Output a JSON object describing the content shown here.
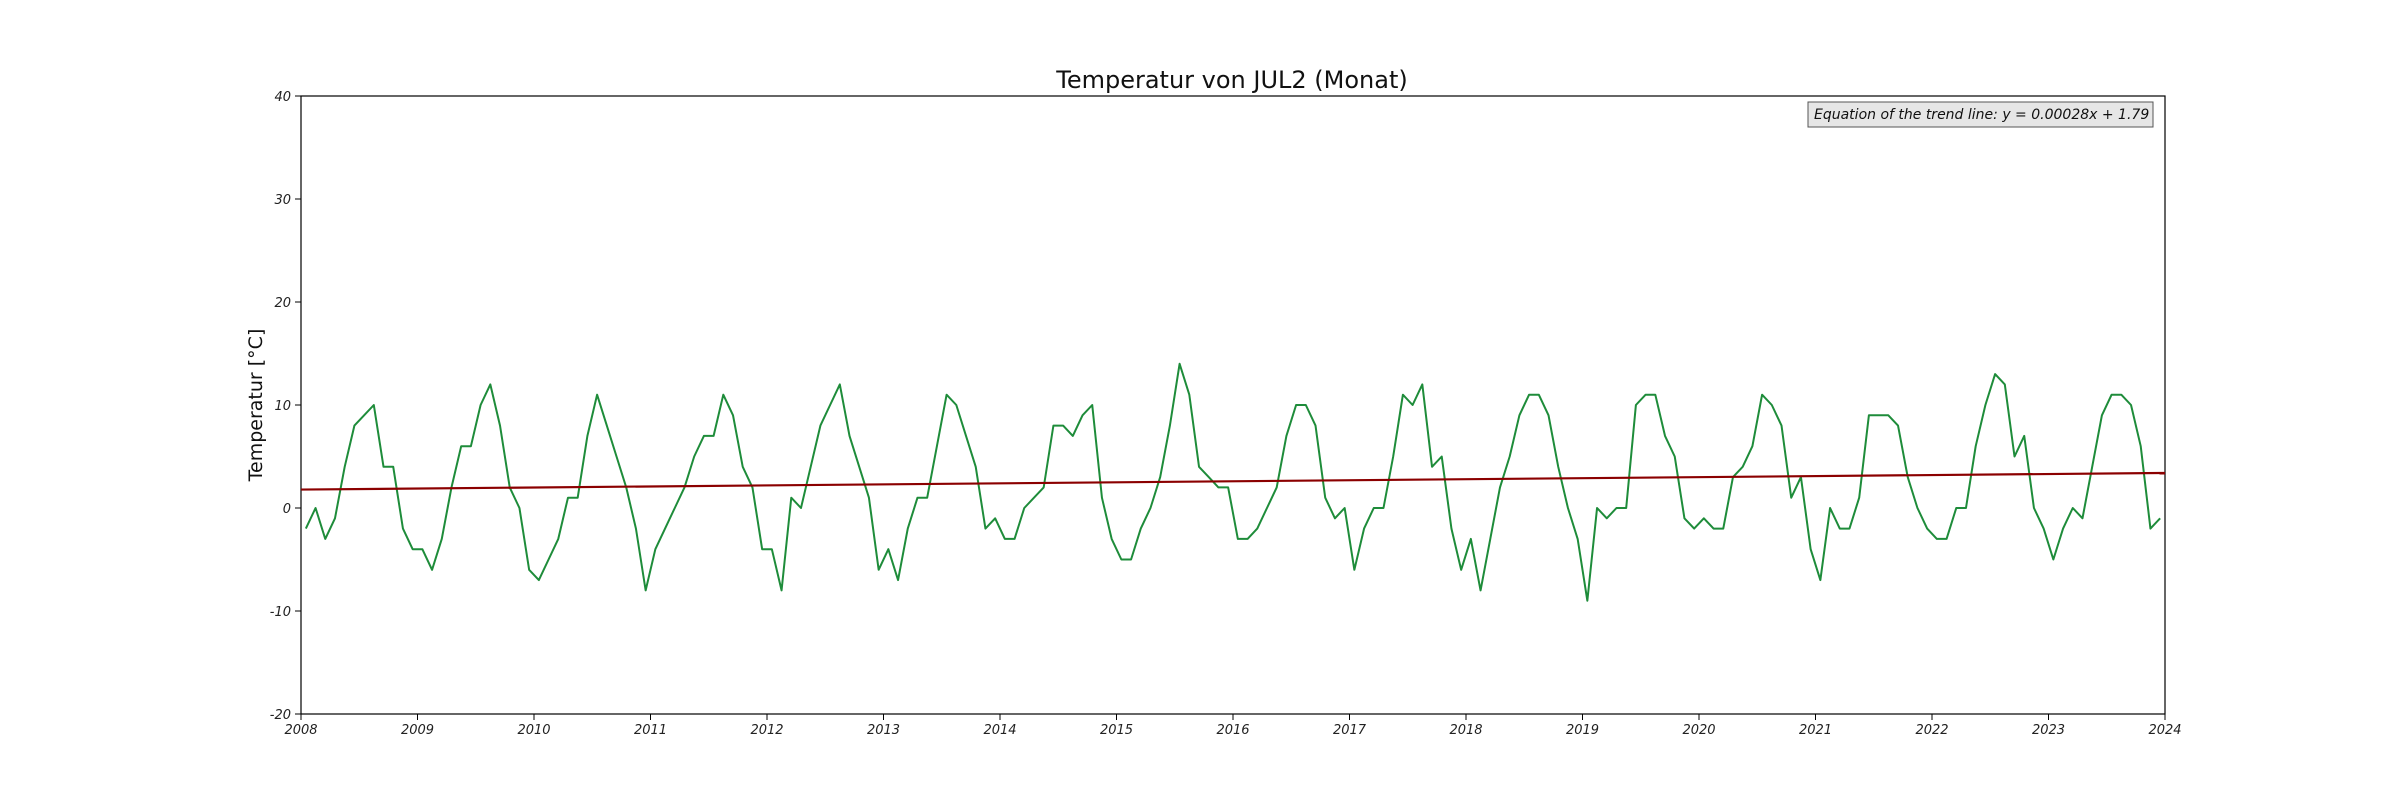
{
  "chart_data": {
    "type": "line",
    "title": "Temperatur von JUL2 (Monat)",
    "xlabel": "",
    "ylabel": "Temperatur [°C]",
    "xlim": [
      2008,
      2024
    ],
    "ylim": [
      -20,
      40
    ],
    "yticks": [
      -20,
      -10,
      0,
      10,
      20,
      30,
      40
    ],
    "xticks": [
      2008,
      2009,
      2010,
      2011,
      2012,
      2013,
      2014,
      2015,
      2016,
      2017,
      2018,
      2019,
      2020,
      2021,
      2022,
      2023,
      2024
    ],
    "grid": false,
    "annotation": "Equation of the trend line: y = 0.00028x + 1.79",
    "series": [
      {
        "color": "#1e8c3a",
        "x_start": "2008-01",
        "x_step": "1 month",
        "values": [
          -2,
          0,
          -3,
          -1,
          4,
          8,
          9,
          10,
          4,
          4,
          -2,
          -4,
          -4,
          -6,
          -3,
          2,
          6,
          6,
          10,
          12,
          8,
          2,
          0,
          -6,
          -7,
          -5,
          -3,
          1,
          1,
          7,
          11,
          8,
          5,
          2,
          -2,
          -8,
          -4,
          -2,
          0,
          2,
          5,
          7,
          7,
          11,
          9,
          4,
          2,
          -4,
          -4,
          -8,
          1,
          0,
          4,
          8,
          10,
          12,
          7,
          4,
          1,
          -6,
          -4,
          -7,
          -2,
          1,
          1,
          6,
          11,
          10,
          7,
          4,
          -2,
          -1,
          -3,
          -3,
          0,
          1,
          2,
          8,
          8,
          7,
          9,
          10,
          1,
          -3,
          -5,
          -5,
          -2,
          0,
          3,
          8,
          14,
          11,
          4,
          3,
          2,
          2,
          -3,
          -3,
          -2,
          0,
          2,
          7,
          10,
          10,
          8,
          1,
          -1,
          0,
          -6,
          -2,
          0,
          0,
          5,
          11,
          10,
          12,
          4,
          5,
          -2,
          -6,
          -3,
          -8,
          -3,
          2,
          5,
          9,
          11,
          11,
          9,
          4,
          0,
          -3,
          -9,
          0,
          -1,
          0,
          0,
          10,
          11,
          11,
          7,
          5,
          -1,
          -2,
          -1,
          -2,
          -2,
          3,
          4,
          6,
          11,
          10,
          8,
          1,
          3,
          -4,
          -7,
          0,
          -2,
          -2,
          1,
          9,
          9,
          9,
          8,
          3,
          0,
          -2,
          -3,
          -3,
          0,
          0,
          6,
          10,
          13,
          12,
          5,
          7,
          0,
          -2,
          -5,
          -2,
          0,
          -1,
          4,
          9,
          11,
          11,
          10,
          6,
          -2,
          -1
        ]
      },
      {
        "color": "#8b0000",
        "x": [
          2008,
          2024
        ],
        "values": [
          1.79,
          3.4
        ]
      }
    ]
  }
}
